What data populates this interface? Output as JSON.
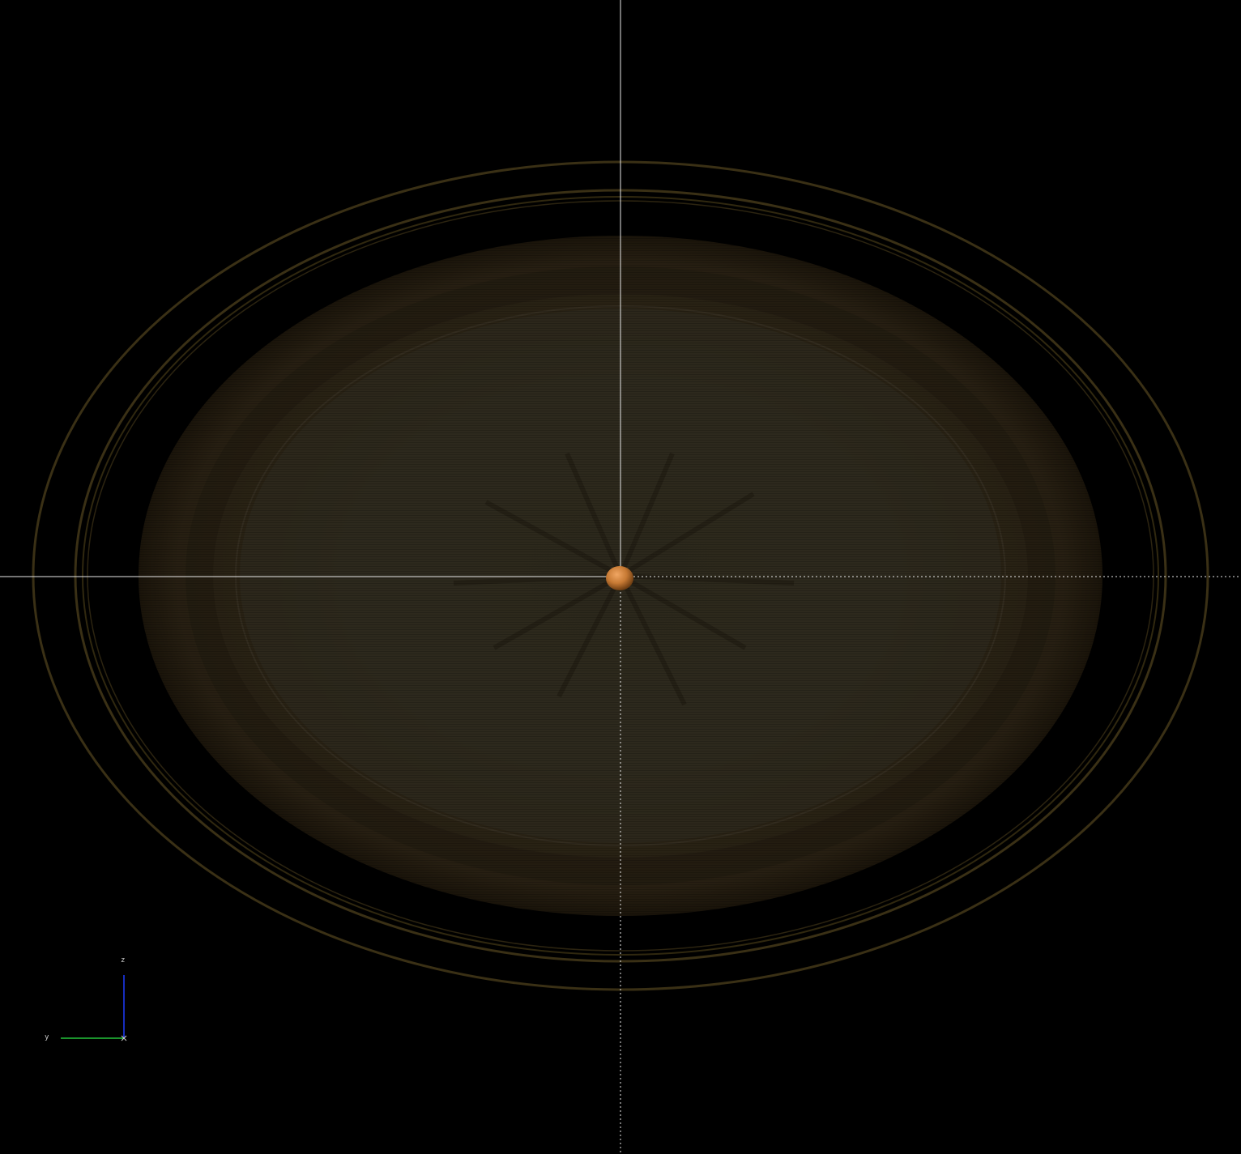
{
  "viewer": {
    "background": "#000000",
    "disc_color": "#2b2416",
    "disc_inner_color": "#2e2a1d",
    "ring_color": "#3a3015",
    "crosshair_color": "#e8e8e8",
    "body_color": "#c77a34"
  },
  "orientation_gizmo": {
    "z_label": "z",
    "x_label": "x",
    "y_label": "y",
    "z_color": "#1e3cff",
    "y_color": "#22c43a"
  }
}
